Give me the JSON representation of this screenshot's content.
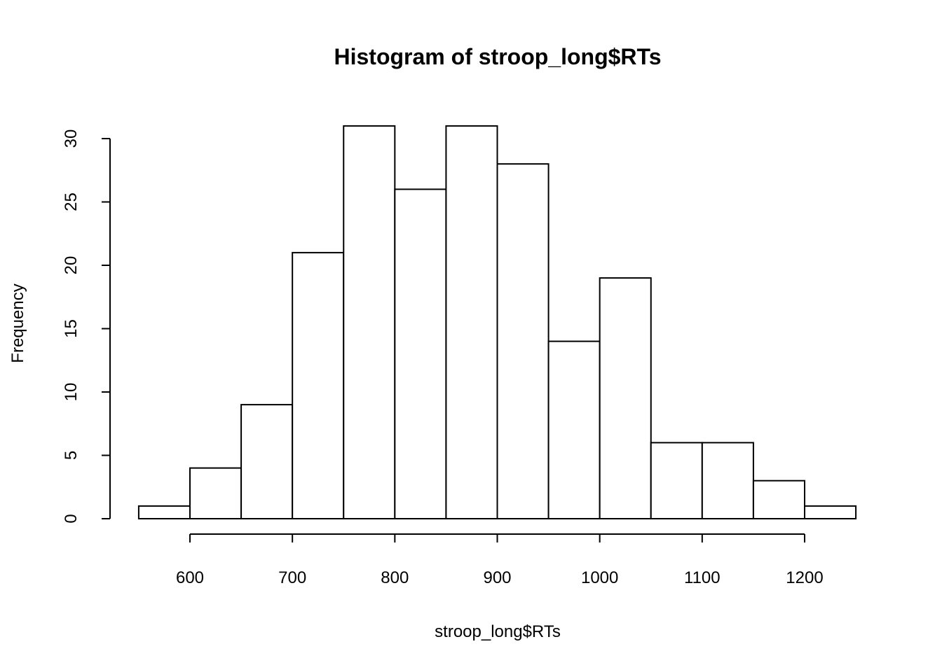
{
  "chart_data": {
    "type": "bar",
    "title": "Histogram of stroop_long$RTs",
    "xlabel": "stroop_long$RTs",
    "ylabel": "Frequency",
    "bin_edges": [
      550,
      600,
      650,
      700,
      750,
      800,
      850,
      900,
      950,
      1000,
      1050,
      1100,
      1150,
      1200,
      1250
    ],
    "values": [
      1,
      4,
      9,
      21,
      31,
      26,
      31,
      28,
      14,
      19,
      6,
      6,
      3,
      1
    ],
    "xticks": [
      600,
      700,
      800,
      900,
      1000,
      1100,
      1200
    ],
    "yticks": [
      0,
      5,
      10,
      15,
      20,
      25,
      30
    ],
    "xlim": [
      550,
      1250
    ],
    "ylim": [
      0,
      30
    ],
    "grid": false,
    "bar_fill": "#ffffff",
    "bar_stroke": "#000000"
  }
}
